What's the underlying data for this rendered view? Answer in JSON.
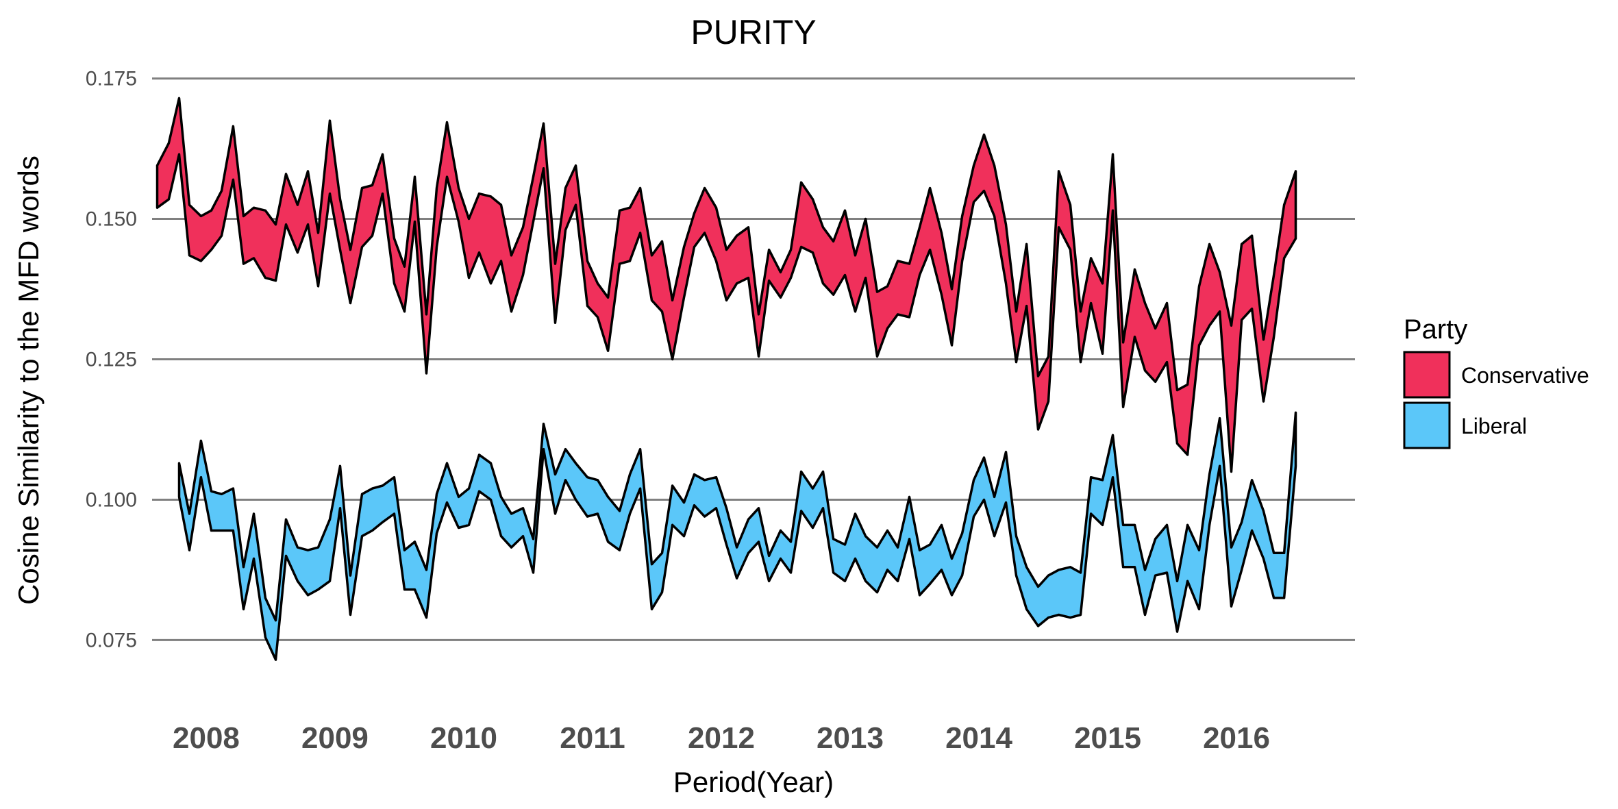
{
  "chart_data": {
    "type": "area",
    "subtype": "ribbon",
    "title": "PURITY",
    "xlabel": "Period(Year)",
    "ylabel": "Cosine Similarity to the MFD words",
    "xlim": [
      2007.58,
      2016.92
    ],
    "ylim": [
      0.067,
      0.178
    ],
    "yticks": [
      0.075,
      0.1,
      0.125,
      0.15,
      0.175
    ],
    "ytick_labels": [
      "0.075",
      "0.100",
      "0.125",
      "0.150",
      "0.175"
    ],
    "xticks": [
      2008,
      2009,
      2010,
      2011,
      2012,
      2013,
      2014,
      2015,
      2016
    ],
    "xtick_labels": [
      "2008",
      "2009",
      "2010",
      "2011",
      "2012",
      "2013",
      "2014",
      "2015",
      "2016"
    ],
    "grid": "horizontal major",
    "legend": {
      "title": "Party",
      "position": "right"
    },
    "series": [
      {
        "name": "Conservative",
        "color": "#F0305B",
        "x": [
          2007.62,
          2007.71,
          2007.79,
          2007.87,
          2007.96,
          2008.04,
          2008.12,
          2008.21,
          2008.29,
          2008.37,
          2008.46,
          2008.54,
          2008.62,
          2008.71,
          2008.79,
          2008.87,
          2008.96,
          2009.04,
          2009.12,
          2009.21,
          2009.29,
          2009.37,
          2009.46,
          2009.54,
          2009.62,
          2009.71,
          2009.79,
          2009.87,
          2009.96,
          2010.04,
          2010.12,
          2010.21,
          2010.29,
          2010.37,
          2010.46,
          2010.54,
          2010.62,
          2010.71,
          2010.79,
          2010.87,
          2010.96,
          2011.04,
          2011.12,
          2011.21,
          2011.29,
          2011.37,
          2011.46,
          2011.54,
          2011.62,
          2011.71,
          2011.79,
          2011.87,
          2011.96,
          2012.04,
          2012.12,
          2012.21,
          2012.29,
          2012.37,
          2012.46,
          2012.54,
          2012.62,
          2012.71,
          2012.79,
          2012.87,
          2012.96,
          2013.04,
          2013.12,
          2013.21,
          2013.29,
          2013.37,
          2013.46,
          2013.54,
          2013.62,
          2013.71,
          2013.79,
          2013.87,
          2013.96,
          2014.04,
          2014.12,
          2014.21,
          2014.29,
          2014.37,
          2014.46,
          2014.54,
          2014.62,
          2014.71,
          2014.79,
          2014.87,
          2014.96,
          2015.04,
          2015.12,
          2015.21,
          2015.29,
          2015.37,
          2015.46,
          2015.54,
          2015.62,
          2015.71,
          2015.79,
          2015.87,
          2015.96,
          2016.04,
          2016.12,
          2016.21,
          2016.29,
          2016.37,
          2016.46
        ],
        "upper": [
          0.1595,
          0.1635,
          0.1715,
          0.1525,
          0.1505,
          0.1515,
          0.155,
          0.1665,
          0.1505,
          0.152,
          0.1515,
          0.149,
          0.158,
          0.1525,
          0.1585,
          0.1475,
          0.1675,
          0.1535,
          0.1445,
          0.1555,
          0.156,
          0.1615,
          0.1465,
          0.1415,
          0.1575,
          0.133,
          0.1555,
          0.1672,
          0.1555,
          0.15,
          0.1545,
          0.154,
          0.1525,
          0.1435,
          0.1485,
          0.1575,
          0.167,
          0.142,
          0.1555,
          0.1595,
          0.1425,
          0.1385,
          0.136,
          0.1515,
          0.152,
          0.1555,
          0.1435,
          0.146,
          0.1355,
          0.145,
          0.151,
          0.1555,
          0.152,
          0.1445,
          0.147,
          0.1485,
          0.133,
          0.1445,
          0.1405,
          0.1445,
          0.1565,
          0.1535,
          0.1485,
          0.146,
          0.1515,
          0.1435,
          0.15,
          0.137,
          0.138,
          0.1425,
          0.142,
          0.1485,
          0.1555,
          0.1475,
          0.1375,
          0.1505,
          0.1595,
          0.165,
          0.1595,
          0.149,
          0.1335,
          0.1455,
          0.122,
          0.1255,
          0.1585,
          0.1525,
          0.1335,
          0.143,
          0.1385,
          0.1615,
          0.128,
          0.141,
          0.135,
          0.1305,
          0.135,
          0.1195,
          0.1205,
          0.138,
          0.1455,
          0.1405,
          0.131,
          0.1455,
          0.147,
          0.1285,
          0.14,
          0.1525,
          0.1585
        ],
        "lower": [
          0.152,
          0.1535,
          0.1615,
          0.1435,
          0.1425,
          0.1445,
          0.147,
          0.157,
          0.142,
          0.143,
          0.1395,
          0.139,
          0.149,
          0.144,
          0.149,
          0.138,
          0.1545,
          0.1445,
          0.135,
          0.145,
          0.147,
          0.1545,
          0.1385,
          0.1335,
          0.1495,
          0.1225,
          0.145,
          0.1575,
          0.1495,
          0.1395,
          0.144,
          0.1385,
          0.1425,
          0.1335,
          0.14,
          0.1495,
          0.159,
          0.1315,
          0.148,
          0.1525,
          0.1345,
          0.1325,
          0.1265,
          0.142,
          0.1425,
          0.1475,
          0.1355,
          0.1335,
          0.125,
          0.136,
          0.145,
          0.1475,
          0.1425,
          0.1355,
          0.1385,
          0.1395,
          0.1255,
          0.139,
          0.136,
          0.1395,
          0.145,
          0.144,
          0.1385,
          0.1365,
          0.14,
          0.1335,
          0.1395,
          0.1255,
          0.1305,
          0.133,
          0.1325,
          0.14,
          0.1445,
          0.1365,
          0.1275,
          0.1425,
          0.153,
          0.155,
          0.1505,
          0.1385,
          0.1245,
          0.1345,
          0.1125,
          0.1175,
          0.1485,
          0.1445,
          0.1245,
          0.135,
          0.126,
          0.1515,
          0.1165,
          0.129,
          0.123,
          0.121,
          0.1245,
          0.11,
          0.108,
          0.1275,
          0.131,
          0.1335,
          0.105,
          0.132,
          0.134,
          0.1175,
          0.129,
          0.143,
          0.1465
        ]
      },
      {
        "name": "Liberal",
        "color": "#5BC7F9",
        "x": [
          2007.79,
          2007.87,
          2007.96,
          2008.04,
          2008.12,
          2008.21,
          2008.29,
          2008.37,
          2008.46,
          2008.54,
          2008.62,
          2008.71,
          2008.79,
          2008.87,
          2008.96,
          2009.04,
          2009.12,
          2009.21,
          2009.29,
          2009.37,
          2009.46,
          2009.54,
          2009.62,
          2009.71,
          2009.79,
          2009.87,
          2009.96,
          2010.04,
          2010.12,
          2010.21,
          2010.29,
          2010.37,
          2010.46,
          2010.54,
          2010.62,
          2010.71,
          2010.79,
          2010.87,
          2010.96,
          2011.04,
          2011.12,
          2011.21,
          2011.29,
          2011.37,
          2011.46,
          2011.54,
          2011.62,
          2011.71,
          2011.79,
          2011.87,
          2011.96,
          2012.04,
          2012.12,
          2012.21,
          2012.29,
          2012.37,
          2012.46,
          2012.54,
          2012.62,
          2012.71,
          2012.79,
          2012.87,
          2012.96,
          2013.04,
          2013.12,
          2013.21,
          2013.29,
          2013.37,
          2013.46,
          2013.54,
          2013.62,
          2013.71,
          2013.79,
          2013.87,
          2013.96,
          2014.04,
          2014.12,
          2014.21,
          2014.29,
          2014.37,
          2014.46,
          2014.54,
          2014.62,
          2014.71,
          2014.79,
          2014.87,
          2014.96,
          2015.04,
          2015.12,
          2015.21,
          2015.29,
          2015.37,
          2015.46,
          2015.54,
          2015.62,
          2015.71,
          2015.79,
          2015.87,
          2015.96,
          2016.04,
          2016.12,
          2016.21,
          2016.29,
          2016.37,
          2016.46
        ],
        "upper": [
          0.1065,
          0.0975,
          0.1105,
          0.1015,
          0.101,
          0.102,
          0.088,
          0.0975,
          0.0825,
          0.0785,
          0.0965,
          0.0915,
          0.091,
          0.0915,
          0.0965,
          0.106,
          0.0865,
          0.101,
          0.102,
          0.1025,
          0.104,
          0.091,
          0.0925,
          0.0875,
          0.101,
          0.1065,
          0.1005,
          0.102,
          0.108,
          0.1065,
          0.1005,
          0.0975,
          0.0985,
          0.093,
          0.1135,
          0.1045,
          0.109,
          0.1065,
          0.104,
          0.1035,
          0.1005,
          0.098,
          0.1045,
          0.109,
          0.0885,
          0.0905,
          0.1025,
          0.0995,
          0.1045,
          0.1035,
          0.104,
          0.0985,
          0.0915,
          0.0965,
          0.0985,
          0.09,
          0.0945,
          0.0925,
          0.105,
          0.102,
          0.105,
          0.093,
          0.092,
          0.0975,
          0.0935,
          0.0915,
          0.0945,
          0.0915,
          0.1005,
          0.091,
          0.092,
          0.0955,
          0.0895,
          0.094,
          0.1035,
          0.1075,
          0.1005,
          0.1085,
          0.0935,
          0.088,
          0.0845,
          0.0865,
          0.0875,
          0.088,
          0.087,
          0.104,
          0.1035,
          0.1115,
          0.0955,
          0.0955,
          0.0875,
          0.093,
          0.0955,
          0.0855,
          0.0955,
          0.091,
          0.1045,
          0.1145,
          0.0915,
          0.096,
          0.1035,
          0.098,
          0.0905,
          0.0905,
          0.1155
        ],
        "lower": [
          0.1005,
          0.091,
          0.104,
          0.0945,
          0.0945,
          0.0945,
          0.0805,
          0.0895,
          0.0755,
          0.0715,
          0.09,
          0.0855,
          0.083,
          0.084,
          0.0855,
          0.0985,
          0.0795,
          0.0935,
          0.0945,
          0.096,
          0.0975,
          0.084,
          0.084,
          0.079,
          0.094,
          0.0995,
          0.095,
          0.0955,
          0.1015,
          0.1,
          0.0935,
          0.0915,
          0.0935,
          0.087,
          0.109,
          0.0975,
          0.1035,
          0.1,
          0.097,
          0.0975,
          0.0925,
          0.091,
          0.0975,
          0.102,
          0.0805,
          0.0835,
          0.0955,
          0.0935,
          0.099,
          0.097,
          0.0985,
          0.092,
          0.086,
          0.0905,
          0.0925,
          0.0855,
          0.0895,
          0.087,
          0.098,
          0.095,
          0.0985,
          0.087,
          0.0855,
          0.0895,
          0.0855,
          0.0835,
          0.0875,
          0.0855,
          0.093,
          0.083,
          0.085,
          0.0875,
          0.083,
          0.0865,
          0.097,
          0.1,
          0.0935,
          0.0995,
          0.0865,
          0.0805,
          0.0775,
          0.079,
          0.0795,
          0.079,
          0.0795,
          0.0975,
          0.0955,
          0.104,
          0.088,
          0.088,
          0.0795,
          0.0865,
          0.087,
          0.0765,
          0.0855,
          0.0805,
          0.0955,
          0.106,
          0.081,
          0.0875,
          0.0945,
          0.0895,
          0.0825,
          0.0825,
          0.106
        ]
      }
    ]
  }
}
